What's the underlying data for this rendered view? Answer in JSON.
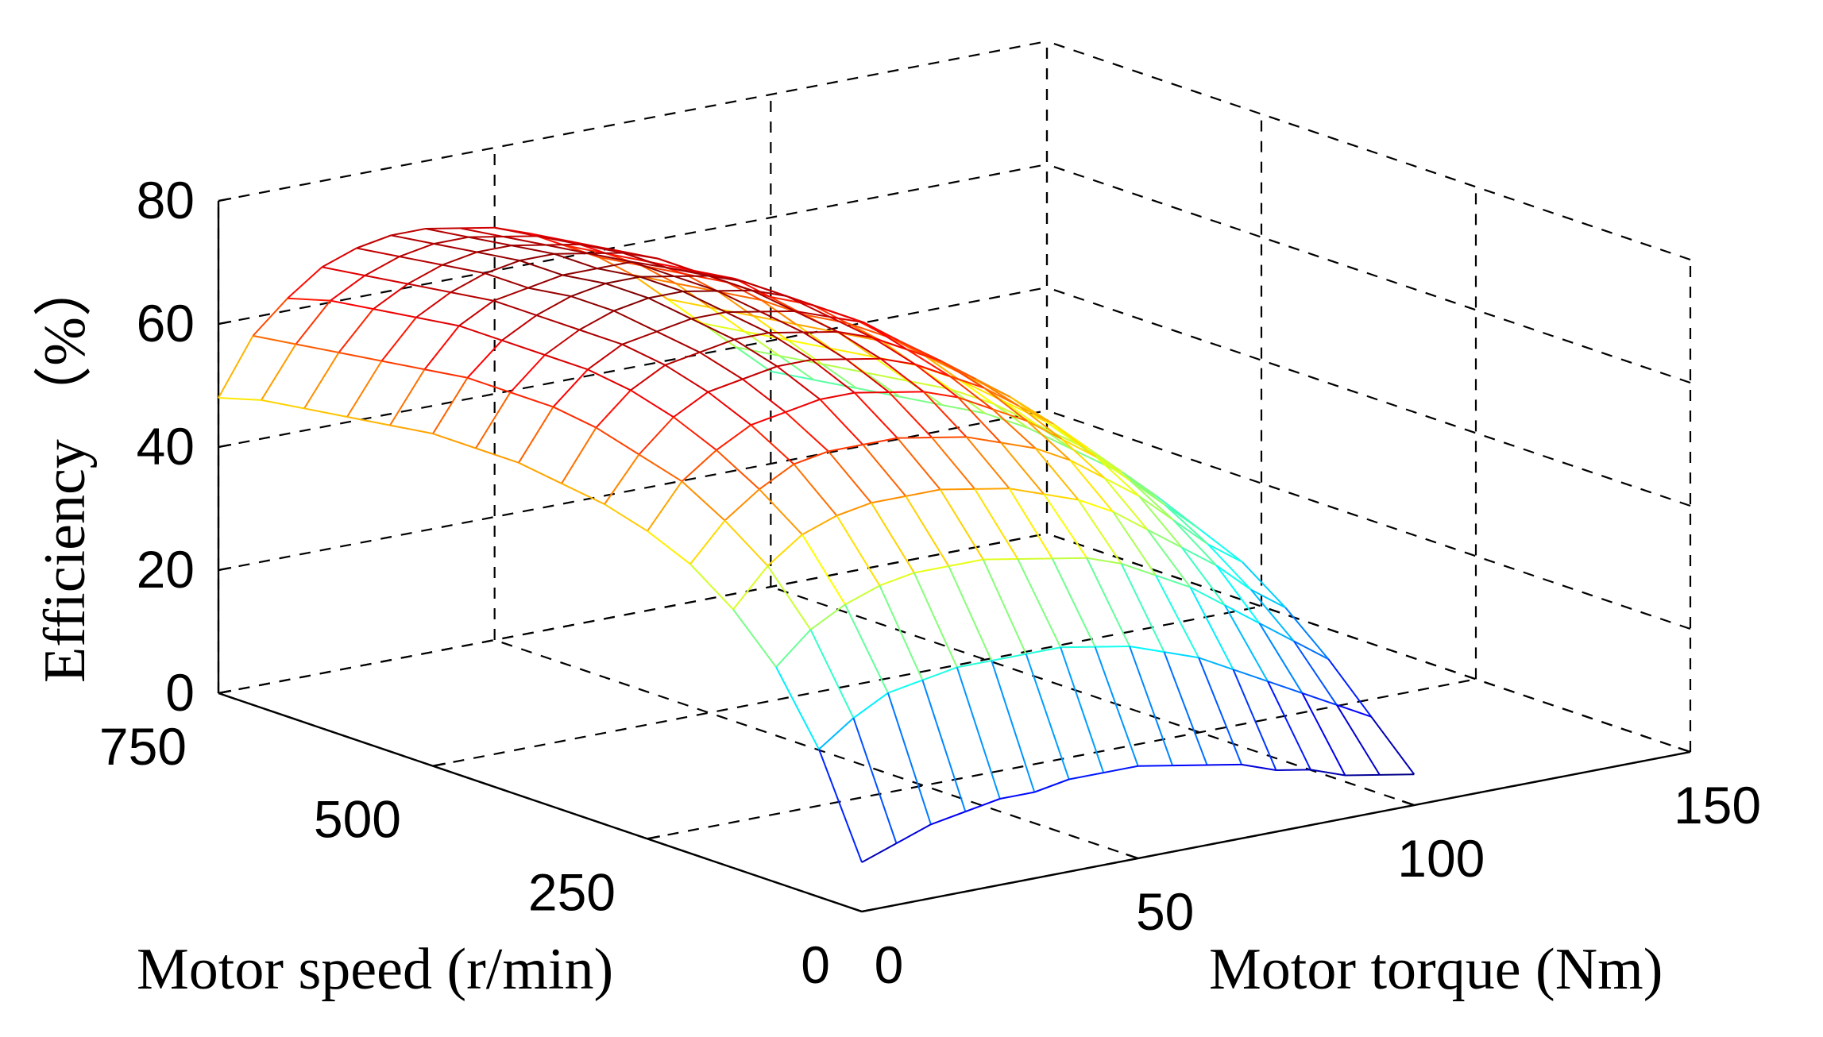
{
  "chart_data": {
    "type": "surface",
    "title": "",
    "xlabel": "Motor torque (Nm)",
    "ylabel": "Motor speed (r/min)",
    "zlabel": "Efficiency （%）",
    "xlim": [
      0,
      150
    ],
    "ylim": [
      0,
      750
    ],
    "zlim": [
      0,
      80
    ],
    "xticks": [
      "0",
      "50",
      "100",
      "150"
    ],
    "yticks": [
      "0",
      "250",
      "500",
      "750"
    ],
    "zticks": [
      "0",
      "20",
      "40",
      "60",
      "80"
    ],
    "grid": true,
    "colormap": "jet",
    "torque": [
      0,
      6.25,
      12.5,
      18.75,
      25,
      31.25,
      37.5,
      43.75,
      50,
      56.25,
      62.5,
      68.75,
      75,
      81.25,
      87.5,
      93.75,
      100
    ],
    "speed": [
      0,
      50,
      100,
      150,
      200,
      250,
      300,
      350,
      400,
      450,
      500,
      550,
      600,
      650,
      700,
      750
    ],
    "efficiency": [
      [
        8,
        10,
        12,
        13,
        14,
        14,
        15,
        15,
        15,
        14,
        13,
        12,
        10,
        9,
        7,
        6,
        5
      ],
      [
        24,
        28,
        31,
        32,
        33,
        33,
        33,
        33,
        32,
        31,
        29,
        27,
        24,
        21,
        18,
        15,
        12
      ],
      [
        35,
        40,
        43,
        45,
        46,
        46,
        46,
        45,
        44,
        43,
        41,
        38,
        35,
        31,
        27,
        23,
        19
      ],
      [
        42,
        48,
        52,
        54,
        55,
        55,
        55,
        54,
        53,
        51,
        49,
        46,
        42,
        38,
        34,
        29,
        25
      ],
      [
        47,
        53,
        57,
        60,
        61,
        61,
        61,
        60,
        59,
        57,
        55,
        52,
        48,
        44,
        39,
        34,
        30
      ],
      [
        50,
        57,
        61,
        64,
        65,
        66,
        66,
        65,
        64,
        62,
        59,
        56,
        52,
        48,
        43,
        38,
        33
      ],
      [
        52,
        59,
        64,
        67,
        68,
        69,
        69,
        68,
        67,
        65,
        62,
        59,
        55,
        51,
        46,
        41,
        36
      ],
      [
        53,
        61,
        66,
        69,
        70,
        71,
        71,
        70,
        69,
        67,
        64,
        61,
        57,
        53,
        48,
        43,
        38
      ],
      [
        54,
        62,
        67,
        70,
        71,
        72,
        72,
        71,
        70,
        68,
        66,
        62,
        58,
        54,
        49,
        44,
        39
      ],
      [
        54,
        62,
        67,
        70,
        72,
        73,
        73,
        72,
        71,
        69,
        66,
        63,
        59,
        55,
        50,
        45,
        40
      ],
      [
        54,
        62,
        67,
        70,
        72,
        73,
        73,
        72,
        71,
        69,
        66,
        63,
        59,
        55,
        50,
        45,
        40
      ],
      [
        53,
        61,
        67,
        70,
        71,
        72,
        72,
        72,
        70,
        68,
        66,
        62,
        58,
        54,
        49,
        44,
        39
      ],
      [
        52,
        60,
        66,
        69,
        71,
        72,
        72,
        71,
        70,
        68,
        65,
        62,
        58,
        53,
        48,
        43,
        38
      ],
      [
        51,
        59,
        65,
        68,
        70,
        71,
        71,
        70,
        69,
        67,
        64,
        61,
        57,
        52,
        47,
        42,
        37
      ],
      [
        50,
        58,
        64,
        67,
        69,
        70,
        70,
        69,
        68,
        66,
        63,
        60,
        56,
        51,
        46,
        41,
        36
      ],
      [
        48,
        57,
        62,
        66,
        68,
        69,
        69,
        68,
        67,
        65,
        62,
        59,
        55,
        50,
        45,
        40,
        35
      ]
    ]
  }
}
